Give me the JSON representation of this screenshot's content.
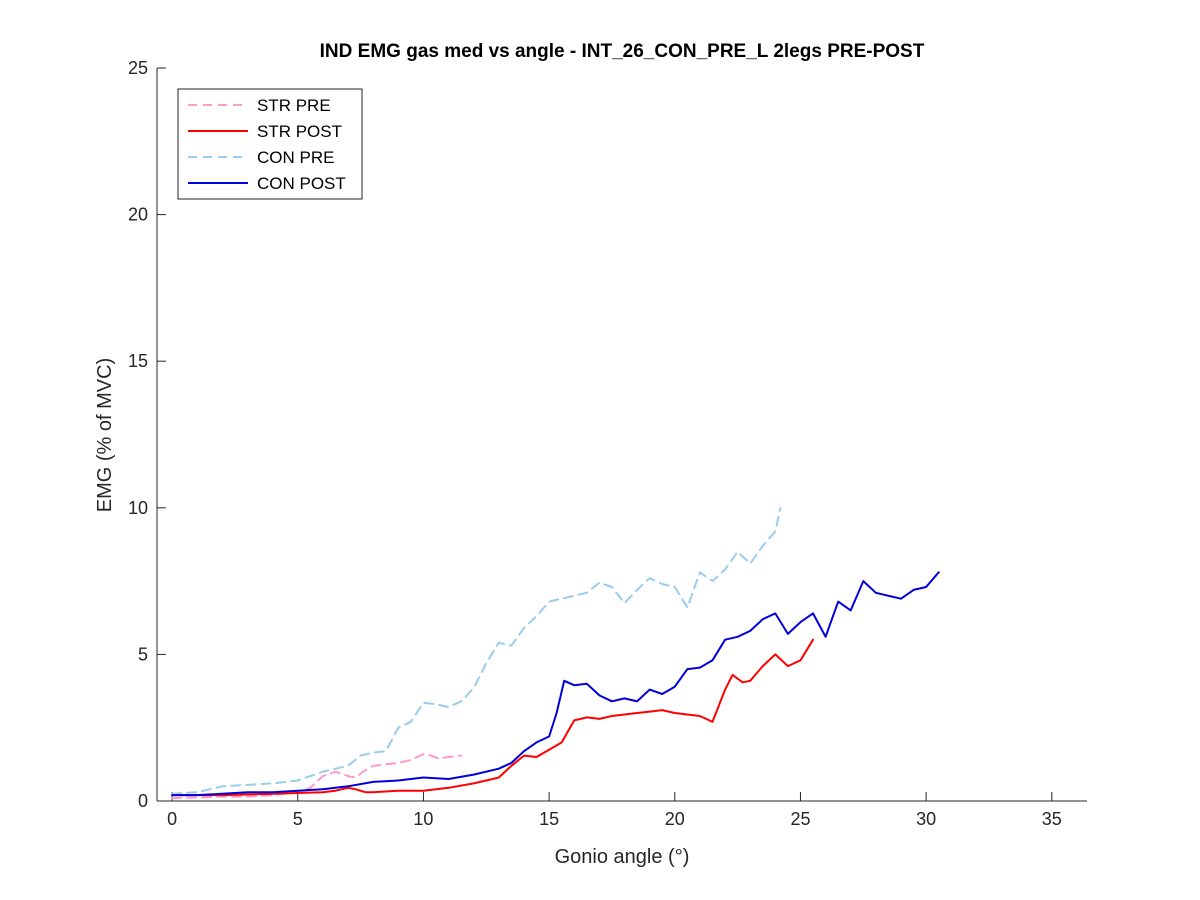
{
  "chart_data": {
    "type": "line",
    "title": "IND EMG gas med vs angle - INT_26_CON_PRE_L 2legs PRE-POST",
    "xlabel": "Gonio angle (°)",
    "ylabel": "EMG (% of MVC)",
    "xlim": [
      -0.6,
      36.4
    ],
    "ylim": [
      0,
      25
    ],
    "xticks": [
      0,
      5,
      10,
      15,
      20,
      25,
      30,
      35
    ],
    "yticks": [
      0,
      5,
      10,
      15,
      20,
      25
    ],
    "xtick_labels": [
      "0",
      "5",
      "10",
      "15",
      "20",
      "25",
      "30",
      "35"
    ],
    "ytick_labels": [
      "0",
      "5",
      "10",
      "15",
      "20",
      "25"
    ],
    "grid": false,
    "legend_position": "top-left",
    "series": [
      {
        "name": "STR PRE",
        "color": "#ff99cc",
        "dash": "dashed",
        "x": [
          0,
          1,
          2,
          3,
          4,
          5,
          5.5,
          6,
          6.5,
          7,
          7.3,
          7.6,
          8,
          8.5,
          9,
          9.5,
          10,
          10.3,
          10.6,
          11,
          11.5
        ],
        "y": [
          0.1,
          0.12,
          0.15,
          0.15,
          0.2,
          0.3,
          0.45,
          0.85,
          1.0,
          0.85,
          0.8,
          1.0,
          1.2,
          1.25,
          1.3,
          1.4,
          1.6,
          1.55,
          1.45,
          1.5,
          1.55
        ]
      },
      {
        "name": "STR POST",
        "color": "#ff0000",
        "dash": "solid",
        "x": [
          0,
          2,
          4,
          6,
          6.5,
          7,
          7.3,
          7.7,
          8,
          9,
          10,
          11,
          12,
          12.5,
          13,
          13.5,
          14,
          14.5,
          15,
          15.5,
          16,
          16.5,
          17,
          17.5,
          18,
          18.5,
          19,
          19.5,
          20,
          20.5,
          21,
          21.5,
          22,
          22.3,
          22.7,
          23,
          23.5,
          24,
          24.5,
          25,
          25.5
        ],
        "y": [
          0.2,
          0.2,
          0.25,
          0.3,
          0.35,
          0.45,
          0.4,
          0.3,
          0.3,
          0.35,
          0.35,
          0.45,
          0.6,
          0.7,
          0.8,
          1.2,
          1.55,
          1.5,
          1.75,
          2.0,
          2.75,
          2.85,
          2.8,
          2.9,
          2.95,
          3.0,
          3.05,
          3.1,
          3.0,
          2.95,
          2.9,
          2.7,
          3.8,
          4.3,
          4.05,
          4.1,
          4.6,
          5.0,
          4.6,
          4.8,
          5.5
        ]
      },
      {
        "name": "CON PRE",
        "color": "#99ccee",
        "dash": "dashed",
        "x": [
          0,
          1,
          2,
          3,
          4,
          5,
          5.5,
          6,
          7,
          7.5,
          8,
          8.5,
          9,
          9.5,
          10,
          10.5,
          11,
          11.5,
          12,
          12.5,
          13,
          13.5,
          14,
          14.5,
          15,
          15.5,
          16,
          16.5,
          17,
          17.5,
          18,
          18.5,
          19,
          19.5,
          20,
          20.5,
          21,
          21.5,
          22,
          22.5,
          23,
          23.5,
          24,
          24.2
        ],
        "y": [
          0.25,
          0.3,
          0.5,
          0.55,
          0.6,
          0.7,
          0.85,
          1.0,
          1.2,
          1.55,
          1.65,
          1.7,
          2.5,
          2.7,
          3.35,
          3.3,
          3.2,
          3.4,
          3.85,
          4.7,
          5.4,
          5.3,
          5.9,
          6.3,
          6.8,
          6.9,
          7.0,
          7.1,
          7.45,
          7.3,
          6.75,
          7.2,
          7.6,
          7.4,
          7.3,
          6.6,
          7.8,
          7.5,
          7.9,
          8.5,
          8.1,
          8.7,
          9.2,
          10.0
        ]
      },
      {
        "name": "CON POST",
        "color": "#0000dd",
        "dash": "solid",
        "x": [
          0,
          1,
          2,
          3,
          4,
          5,
          6,
          7,
          8,
          9,
          10,
          11,
          12,
          13,
          13.5,
          14,
          14.5,
          15,
          15.3,
          15.6,
          16,
          16.5,
          17,
          17.5,
          18,
          18.5,
          19,
          19.5,
          20,
          20.5,
          21,
          21.5,
          22,
          22.5,
          23,
          23.5,
          24,
          24.5,
          25,
          25.5,
          26,
          26.5,
          27,
          27.5,
          28,
          28.5,
          29,
          29.5,
          30,
          30.5
        ],
        "y": [
          0.2,
          0.2,
          0.25,
          0.3,
          0.3,
          0.35,
          0.4,
          0.5,
          0.65,
          0.7,
          0.8,
          0.75,
          0.9,
          1.1,
          1.3,
          1.7,
          2.0,
          2.2,
          3.0,
          4.1,
          3.95,
          4.0,
          3.6,
          3.4,
          3.5,
          3.4,
          3.8,
          3.65,
          3.9,
          4.5,
          4.55,
          4.8,
          5.5,
          5.6,
          5.8,
          6.2,
          6.4,
          5.7,
          6.1,
          6.4,
          5.6,
          6.8,
          6.5,
          7.5,
          7.1,
          7.0,
          6.9,
          7.2,
          7.3,
          7.8
        ]
      }
    ]
  }
}
